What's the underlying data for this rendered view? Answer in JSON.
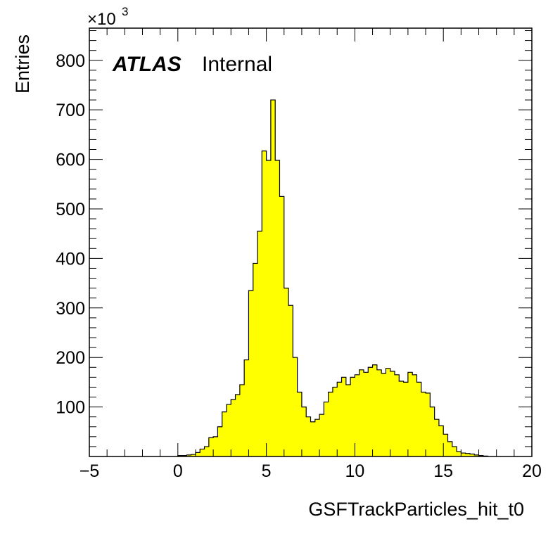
{
  "chart_data": {
    "type": "histogram",
    "xlabel": "GSFTrackParticles_hit_t0",
    "ylabel": "Entries",
    "y_multiplier_label": "×10",
    "y_multiplier_exponent": "3",
    "xlim": [
      -5,
      20
    ],
    "ylim": [
      0,
      865
    ],
    "x_ticks": [
      -5,
      0,
      5,
      10,
      15,
      20
    ],
    "y_ticks": [
      100,
      200,
      300,
      400,
      500,
      600,
      700,
      800
    ],
    "bin_start": 0,
    "bin_width": 0.25,
    "values": [
      2,
      2,
      3,
      4,
      8,
      15,
      20,
      38,
      40,
      60,
      90,
      105,
      115,
      125,
      145,
      195,
      335,
      390,
      455,
      617,
      598,
      720,
      598,
      525,
      340,
      305,
      200,
      130,
      100,
      80,
      70,
      75,
      85,
      110,
      130,
      140,
      150,
      160,
      145,
      160,
      165,
      175,
      170,
      180,
      185,
      175,
      168,
      178,
      172,
      165,
      152,
      150,
      170,
      165,
      150,
      130,
      128,
      100,
      75,
      62,
      45,
      30,
      20,
      10,
      7,
      6,
      5,
      3,
      2,
      1
    ],
    "fill_color": "#ffff00",
    "line_color": "#000000",
    "annotation": {
      "brand": "ATLAS",
      "status": "Internal"
    }
  }
}
